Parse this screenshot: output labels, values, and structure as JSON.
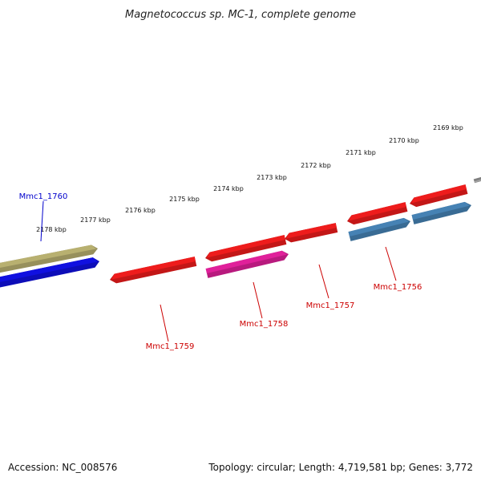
{
  "title": "Magnetococcus sp. MC-1, complete genome",
  "accession": "Accession: NC_008576",
  "topology": "Topology: circular; Length: 4,719,581 bp; Genes: 3,772",
  "colors": {
    "backbone": "#808080",
    "tick": "#1a7a1a",
    "label_forward": "#0000cc",
    "label_reverse": "#cc0000"
  },
  "ticks": [
    {
      "label": "2169 kbp"
    },
    {
      "label": "2170 kbp"
    },
    {
      "label": "2171 kbp"
    },
    {
      "label": "2172 kbp"
    },
    {
      "label": "2173 kbp"
    },
    {
      "label": "2174 kbp"
    },
    {
      "label": "2175 kbp"
    },
    {
      "label": "2176 kbp"
    },
    {
      "label": "2177 kbp"
    },
    {
      "label": "2178 kbp"
    }
  ],
  "features": [
    {
      "id": "Mmc1_1760",
      "strand": "forward",
      "labeled": true,
      "color": "#1010e0"
    },
    {
      "id": "Mmc1_1760_annotation",
      "strand": "forward",
      "labeled": false,
      "color": "#b8b070"
    },
    {
      "id": "Mmc1_1759",
      "strand": "reverse",
      "labeled": true,
      "color": "#ee1c1c"
    },
    {
      "id": "Mmc1_1758",
      "strand": "reverse",
      "labeled": true,
      "color": "#ee1c1c"
    },
    {
      "id": "Mmc1_1758_annotation",
      "strand": "reverse",
      "labeled": false,
      "color": "#e0209a"
    },
    {
      "id": "Mmc1_1757",
      "strand": "reverse",
      "labeled": true,
      "color": "#ee1c1c"
    },
    {
      "id": "Mmc1_1756",
      "strand": "reverse",
      "labeled": true,
      "color": "#ee1c1c"
    },
    {
      "id": "Mmc1_1756_annotation",
      "strand": "reverse",
      "labeled": false,
      "color": "#4682b4"
    },
    {
      "id": "Mmc1_1755",
      "strand": "reverse",
      "labeled": false,
      "color": "#ee1c1c"
    },
    {
      "id": "Mmc1_1755_annotation",
      "strand": "reverse",
      "labeled": false,
      "color": "#4682b4"
    }
  ]
}
